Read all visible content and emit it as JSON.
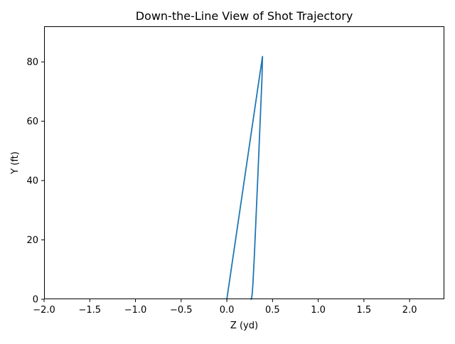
{
  "chart_data": {
    "type": "line",
    "title": "Down-the-Line View of Shot Trajectory",
    "xlabel": "Z (yd)",
    "ylabel": "Y (ft)",
    "xlim": [
      -2.0,
      2.38
    ],
    "ylim": [
      0,
      92
    ],
    "x_ticks": [
      -2.0,
      -1.5,
      -1.0,
      -0.5,
      0.0,
      0.5,
      1.0,
      1.5,
      2.0
    ],
    "x_tick_labels": [
      "−2.0",
      "−1.5",
      "−1.0",
      "−0.5",
      "0.0",
      "0.5",
      "1.0",
      "1.5",
      "2.0"
    ],
    "y_ticks": [
      0,
      20,
      40,
      60,
      80
    ],
    "y_tick_labels": [
      "0",
      "20",
      "40",
      "60",
      "80"
    ],
    "grid": false,
    "legend": "none",
    "series": [
      {
        "color": "#1f77b4",
        "x": [
          0.0,
          0.05,
          0.1,
          0.15,
          0.2,
          0.25,
          0.3,
          0.35,
          0.39,
          0.385,
          0.37,
          0.355,
          0.34,
          0.33,
          0.32,
          0.31,
          0.3,
          0.29,
          0.285,
          0.278,
          0.273,
          0.27,
          0.265
        ],
        "y": [
          0,
          10.5,
          21,
          31.5,
          42,
          52.5,
          63,
          73.5,
          81.8,
          75,
          64,
          53,
          42,
          35,
          28,
          21,
          14,
          8,
          5,
          2,
          0.8,
          0.3,
          0
        ]
      }
    ]
  }
}
